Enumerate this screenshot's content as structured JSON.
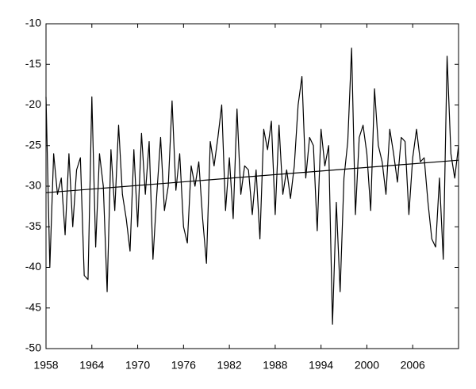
{
  "chart_data": {
    "type": "line",
    "x": [
      1958,
      1958.5,
      1959,
      1959.5,
      1960,
      1960.5,
      1961,
      1961.5,
      1962,
      1962.5,
      1963,
      1963.5,
      1964,
      1964.5,
      1965,
      1965.5,
      1966,
      1966.5,
      1967,
      1967.5,
      1968,
      1968.5,
      1969,
      1969.5,
      1970,
      1970.5,
      1971,
      1971.5,
      1972,
      1972.5,
      1973,
      1973.5,
      1974,
      1974.5,
      1975,
      1975.5,
      1976,
      1976.5,
      1977,
      1977.5,
      1978,
      1978.5,
      1979,
      1979.5,
      1980,
      1980.5,
      1981,
      1981.5,
      1982,
      1982.5,
      1983,
      1983.5,
      1984,
      1984.5,
      1985,
      1985.5,
      1986,
      1986.5,
      1987,
      1987.5,
      1988,
      1988.5,
      1989,
      1989.5,
      1990,
      1990.5,
      1991,
      1991.5,
      1992,
      1992.5,
      1993,
      1993.5,
      1994,
      1994.5,
      1995,
      1995.5,
      1996,
      1996.5,
      1997,
      1997.5,
      1998,
      1998.5,
      1999,
      1999.5,
      2000,
      2000.5,
      2001,
      2001.5,
      2002,
      2002.5,
      2003,
      2003.5,
      2004,
      2004.5,
      2005,
      2005.5,
      2006,
      2006.5,
      2007,
      2007.5,
      2008,
      2008.5,
      2009,
      2009.5,
      2010,
      2010.5,
      2011,
      2011.5,
      2012
    ],
    "series": [
      {
        "color": "#000000",
        "values": [
          -19,
          -40,
          -26,
          -31,
          -29,
          -36,
          -26,
          -35,
          -28,
          -26.5,
          -41,
          -41.5,
          -19,
          -37.5,
          -26,
          -30,
          -43,
          -25.5,
          -33,
          -22.5,
          -31,
          -34,
          -38,
          -25.5,
          -35,
          -23.5,
          -31,
          -24.5,
          -39,
          -31,
          -24,
          -33,
          -30,
          -19.5,
          -30.5,
          -26,
          -35,
          -37,
          -27.5,
          -30,
          -27,
          -34,
          -39.5,
          -24.5,
          -27.5,
          -24,
          -20,
          -33,
          -26.5,
          -34,
          -20.5,
          -31,
          -27.5,
          -28,
          -33.5,
          -28,
          -36.5,
          -23,
          -25.5,
          -22,
          -33.5,
          -22.5,
          -31,
          -28,
          -31.5,
          -27.5,
          -20,
          -16.5,
          -29,
          -24,
          -25,
          -35.5,
          -23,
          -27.5,
          -25,
          -47,
          -32,
          -43,
          -29,
          -24.5,
          -13,
          -33.5,
          -24,
          -22.5,
          -26,
          -33,
          -18,
          -25,
          -27,
          -31,
          -23,
          -26,
          -29.5,
          -24,
          -24.5,
          -33.5,
          -26.5,
          -23,
          -27,
          -26.5,
          -32,
          -36.5,
          -37.5,
          -29,
          -39,
          -14,
          -26,
          -29,
          -25
        ]
      }
    ],
    "trend": {
      "x": [
        1958,
        2012
      ],
      "values": [
        -30.8,
        -26.8
      ],
      "color": "#000000"
    },
    "xlim": [
      1958,
      2012
    ],
    "ylim": [
      -50,
      -10
    ],
    "xticks": [
      1958,
      1964,
      1970,
      1976,
      1982,
      1988,
      1994,
      2000,
      2006
    ],
    "yticks": [
      -10,
      -15,
      -20,
      -25,
      -30,
      -35,
      -40,
      -45,
      -50
    ]
  }
}
